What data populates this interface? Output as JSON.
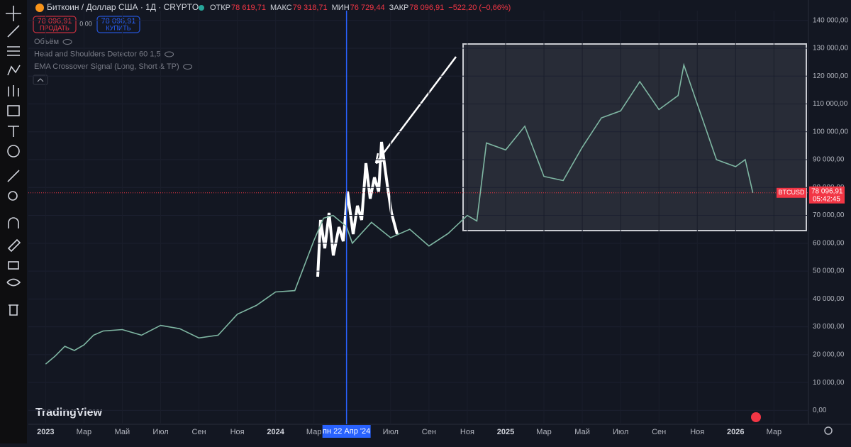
{
  "ui": {
    "symbol_title": "Биткоин / Доллар США · 1Д · CRYPTO",
    "ohlc": [
      [
        "ОТКР",
        "78 619,71"
      ],
      [
        "МАКС",
        "79 318,71"
      ],
      [
        "МИН",
        "76 729,44"
      ],
      [
        "ЗАКР",
        "78 096,91"
      ]
    ],
    "change": "−522,20 (−0,66%)",
    "sell_price": "78 096,91",
    "sell_label": "ПРОДАТЬ",
    "spread": "0,00",
    "buy_price": "78 096,91",
    "buy_label": "КУПИТЬ",
    "indicators": [
      "Объём",
      "Head and Shoulders Detector 60 1,5",
      "EMA Crossover Signal (Long, Short & TP)"
    ],
    "price_symbol": "BTCUSD",
    "countdown": "05:42:45",
    "brand": "TradingView"
  },
  "chart_data": {
    "type": "line",
    "color": "#7fb7a3",
    "x": [
      0,
      0.5,
      1,
      1.5,
      2,
      2.5,
      3,
      4,
      5,
      6,
      7,
      8,
      9,
      10,
      11,
      12,
      13,
      14,
      14.5,
      15,
      15.7,
      16,
      17,
      18,
      19,
      20,
      21,
      22,
      22.5,
      23,
      24,
      25,
      26,
      27,
      28,
      29,
      30,
      31,
      32,
      33,
      33.3,
      34,
      34.5,
      35,
      36,
      36.5,
      36.9
    ],
    "values": [
      16600,
      19500,
      23000,
      21500,
      23500,
      27000,
      28500,
      29000,
      27000,
      30500,
      29300,
      26000,
      27000,
      34500,
      37700,
      42500,
      43000,
      61000,
      69000,
      70000,
      66000,
      60000,
      67500,
      62000,
      65000,
      59000,
      63500,
      70000,
      68000,
      96000,
      93500,
      102000,
      84000,
      82500,
      94500,
      105000,
      107500,
      118000,
      108000,
      113000,
      124000,
      110000,
      100000,
      90000,
      87500,
      90000,
      78096.91
    ],
    "xlim": [
      -0.9,
      39.8
    ],
    "xticks": [
      {
        "value": 0,
        "label": "2023"
      },
      {
        "value": 2,
        "label": "Мар"
      },
      {
        "value": 4,
        "label": "Май"
      },
      {
        "value": 6,
        "label": "Июл"
      },
      {
        "value": 8,
        "label": "Сен"
      },
      {
        "value": 10,
        "label": "Ноя"
      },
      {
        "value": 12,
        "label": "2024"
      },
      {
        "value": 14,
        "label": "Мар"
      },
      {
        "value": 18,
        "label": "Июл"
      },
      {
        "value": 20,
        "label": "Сен"
      },
      {
        "value": 22,
        "label": "Ноя"
      },
      {
        "value": 24,
        "label": "2025"
      },
      {
        "value": 26,
        "label": "Мар"
      },
      {
        "value": 28,
        "label": "Май"
      },
      {
        "value": 30,
        "label": "Июл"
      },
      {
        "value": 32,
        "label": "Сен"
      },
      {
        "value": 34,
        "label": "Ноя"
      },
      {
        "value": 36,
        "label": "2026"
      },
      {
        "value": 38,
        "label": "Мар"
      }
    ],
    "ylim": [
      -5000,
      143500
    ],
    "yticks": [
      {
        "value": 0,
        "label": "0,00"
      },
      {
        "value": 10000,
        "label": "10 000,00"
      },
      {
        "value": 20000,
        "label": "20 000,00"
      },
      {
        "value": 30000,
        "label": "30 000,00"
      },
      {
        "value": 40000,
        "label": "40 000,00"
      },
      {
        "value": 50000,
        "label": "50 000,00"
      },
      {
        "value": 60000,
        "label": "60 000,00"
      },
      {
        "value": 70000,
        "label": "70 000,00"
      },
      {
        "value": 80000,
        "label": "80 000,00"
      },
      {
        "value": 90000,
        "label": "90 000,00"
      },
      {
        "value": 100000,
        "label": "100 000,00"
      },
      {
        "value": 110000,
        "label": "110 000,00"
      },
      {
        "value": 120000,
        "label": "120 000,00"
      },
      {
        "value": 130000,
        "label": "130 000,00"
      },
      {
        "value": 140000,
        "label": "140 000,00"
      }
    ],
    "last_price": {
      "value": 78096.91,
      "label": "78 096,91"
    },
    "crosshair": {
      "value": 15.7,
      "label": "пн 22 Апр '24"
    }
  }
}
